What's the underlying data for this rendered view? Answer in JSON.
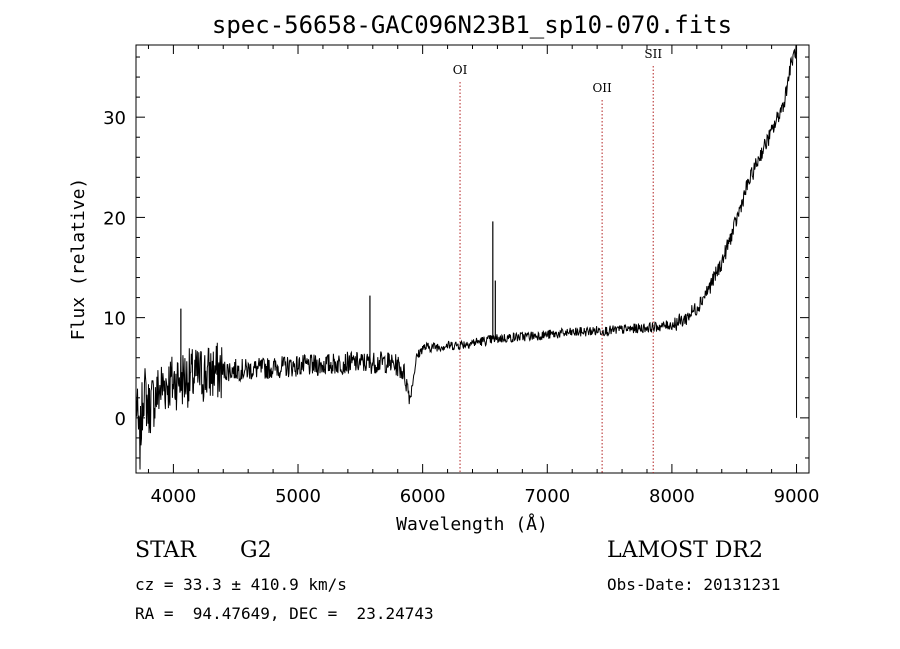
{
  "chart_data": {
    "type": "line",
    "title": "spec-56658-GAC096N23B1_sp10-070.fits",
    "xlabel": "Wavelength (Å)",
    "ylabel": "Flux (relative)",
    "xlim": [
      3700,
      9100
    ],
    "ylim": [
      -5.5,
      37.2
    ],
    "xticks": [
      4000,
      5000,
      6000,
      7000,
      8000,
      9000
    ],
    "yticks": [
      0,
      10,
      20,
      30
    ],
    "grid": false,
    "series": [
      {
        "x": [
          3700,
          3730,
          3760,
          3800,
          3850,
          3900,
          3950,
          4000,
          4050,
          4100,
          4150,
          4200,
          4300,
          4400,
          4500,
          4600,
          4700,
          4800,
          4900,
          5000,
          5100,
          5200,
          5300,
          5400,
          5500,
          5600,
          5700,
          5800,
          5850,
          5880,
          5900,
          5950,
          6000,
          6100,
          6200,
          6300,
          6400,
          6500,
          6600,
          6700,
          6800,
          6900,
          7000,
          7100,
          7200,
          7300,
          7400,
          7500,
          7600,
          7700,
          7800,
          7900,
          8000,
          8100,
          8200,
          8300,
          8400,
          8500,
          8600,
          8700,
          8800,
          8900,
          8950,
          9000
        ],
        "y": [
          2,
          -3,
          3,
          1,
          2,
          3,
          3.5,
          3.5,
          4,
          4,
          4,
          4.2,
          4.5,
          4.7,
          4.8,
          4.8,
          4.9,
          5,
          5.1,
          5.2,
          5.2,
          5.3,
          5.4,
          5.5,
          5.5,
          5.5,
          5.6,
          5.2,
          4.5,
          3,
          2,
          6,
          7,
          7.1,
          7.2,
          7.3,
          7.5,
          7.7,
          7.9,
          8,
          8.1,
          8.2,
          8.3,
          8.4,
          8.5,
          8.6,
          8.7,
          8.7,
          8.8,
          8.9,
          9,
          9.1,
          9.3,
          9.8,
          11,
          13,
          15.5,
          19,
          23,
          26,
          28.5,
          31.5,
          35,
          37
        ]
      }
    ],
    "spikes": [
      {
        "x": 4060,
        "y": 10.9
      },
      {
        "x": 5577,
        "y": 12.2
      },
      {
        "x": 6563,
        "y": 19.6
      },
      {
        "x": 6583,
        "y": 13.7
      }
    ],
    "emission_lines": [
      {
        "label": "OI",
        "x": 6300
      },
      {
        "label": "OII",
        "x": 7440
      },
      {
        "label": "SII",
        "x": 7850
      }
    ],
    "edge_line": {
      "x": 9000,
      "y_min": 0,
      "y_max": 37
    }
  },
  "info": {
    "object_type": "STAR",
    "subclass": "G2",
    "survey": "LAMOST DR2",
    "redshift": "cz = 33.3 ± 410.9 km/s",
    "obs_date": "Obs-Date: 20131231",
    "coords": "RA =  94.47649, DEC =  23.24743"
  }
}
